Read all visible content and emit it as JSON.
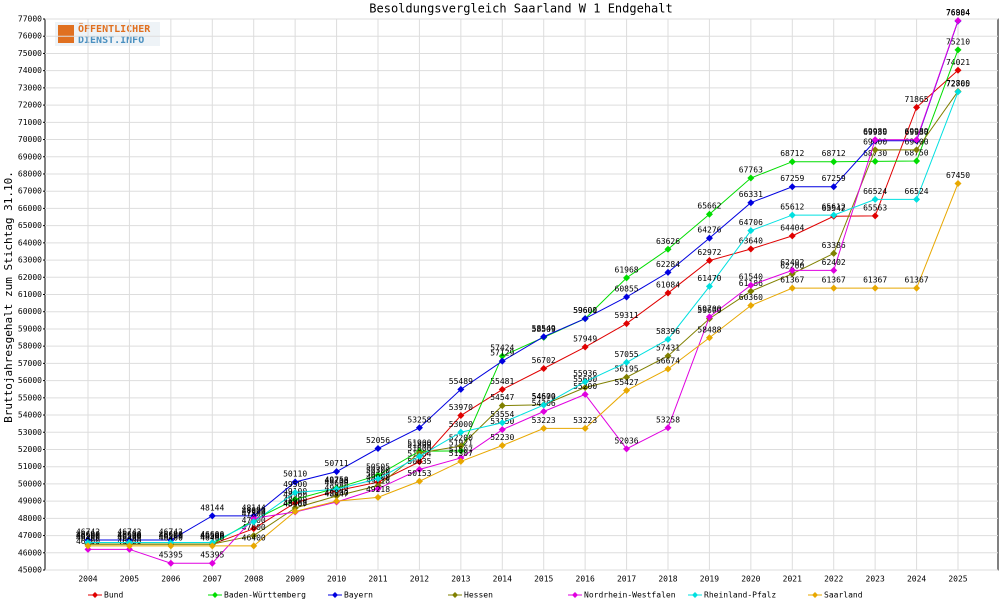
{
  "chart_data": {
    "type": "line",
    "title": "Besoldungsvergleich Saarland W 1 Endgehalt",
    "y_label": "Bruttojahresgehalt zum Stichtag 31.10.",
    "logo": [
      "ÖFFENTLICHER",
      "DIENST.INFO"
    ],
    "categories": [
      "2004",
      "2005",
      "2006",
      "2007",
      "2008",
      "2009",
      "2010",
      "2011",
      "2012",
      "2013",
      "2014",
      "2015",
      "2016",
      "2017",
      "2018",
      "2019",
      "2020",
      "2021",
      "2022",
      "2023",
      "2024",
      "2025"
    ],
    "ylim": [
      45000,
      77000
    ],
    "yticks": [
      45000,
      46000,
      47000,
      48000,
      49000,
      50000,
      51000,
      52000,
      53000,
      54000,
      55000,
      56000,
      57000,
      58000,
      59000,
      60000,
      61000,
      62000,
      63000,
      64000,
      65000,
      66000,
      67000,
      68000,
      69000,
      70000,
      71000,
      72000,
      73000,
      74000,
      75000,
      76000,
      77000
    ],
    "grid": true,
    "series": [
      {
        "name": "Bund",
        "color": "#e00000",
        "values": [
          46500,
          46500,
          46500,
          46500,
          47400,
          48900,
          49600,
          50100,
          51284,
          53970,
          55481,
          56702,
          57949,
          59311,
          61084,
          62972,
          63640,
          64404,
          65542,
          65563,
          71865,
          74021
        ]
      },
      {
        "name": "Baden-Württemberg",
        "color": "#00dd00",
        "values": [
          46500,
          46500,
          46500,
          46500,
          47900,
          49100,
          49758,
          50505,
          51900,
          51921,
          57424,
          58509,
          59600,
          61968,
          63626,
          65662,
          67763,
          68712,
          68712,
          68730,
          68750,
          75210
        ]
      },
      {
        "name": "Bayern",
        "color": "#0000e0",
        "values": [
          46742,
          46742,
          46742,
          48144,
          48144,
          50110,
          50711,
          52056,
          53258,
          55489,
          57129,
          58549,
          59601,
          60855,
          62284,
          64276,
          66331,
          67259,
          67259,
          69930,
          69930,
          76884
        ]
      },
      {
        "name": "Hessen",
        "color": "#808000",
        "values": [
          46500,
          46500,
          46500,
          46500,
          47000,
          48600,
          49300,
          49900,
          51800,
          52200,
          54547,
          54600,
          55600,
          56195,
          57431,
          59600,
          61186,
          62200,
          63386,
          69400,
          69400,
          72800
        ]
      },
      {
        "name": "Nordrhein-Westfalen",
        "color": "#e000e0",
        "values": [
          46200,
          46200,
          45395,
          45395,
          48000,
          48367,
          48947,
          49718,
          50835,
          51507,
          53150,
          54206,
          55200,
          52036,
          53258,
          59700,
          61540,
          62402,
          62402,
          69989,
          69989,
          76904
        ]
      },
      {
        "name": "Rheinland-Pfalz",
        "color": "#00e0e0",
        "values": [
          46600,
          46600,
          46600,
          46600,
          47800,
          49500,
          49700,
          50300,
          51600,
          53000,
          53554,
          54579,
          55936,
          57055,
          58396,
          61470,
          64706,
          65612,
          65612,
          66524,
          66524,
          72765
        ]
      },
      {
        "name": "Saarland",
        "color": "#e8a800",
        "values": [
          46400,
          46400,
          46400,
          46400,
          46400,
          48400,
          49000,
          49218,
          50153,
          51307,
          52230,
          53223,
          53223,
          55427,
          56674,
          58488,
          60360,
          61367,
          61367,
          61367,
          61367,
          67450
        ]
      }
    ]
  }
}
